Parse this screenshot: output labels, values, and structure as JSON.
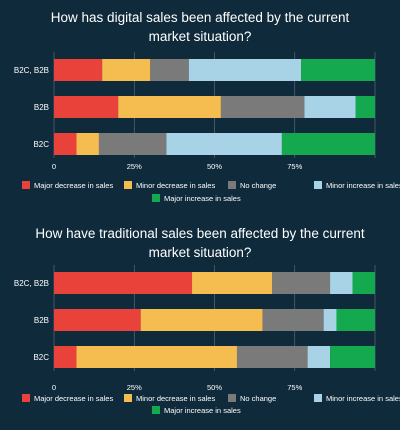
{
  "chart_data": [
    {
      "type": "bar",
      "orientation": "horizontal",
      "stacked": true,
      "title_lines": [
        "How has digital sales been affected by the current",
        "market situation?"
      ],
      "categories": [
        "B2C, B2B",
        "B2B",
        "B2C"
      ],
      "x_ticks": [
        "0",
        "25%",
        "50%",
        "75%",
        ""
      ],
      "xlim": [
        0,
        100
      ],
      "series": [
        {
          "name": "Major decrease in sales",
          "color": "#e8423b",
          "values": [
            15,
            20,
            7
          ]
        },
        {
          "name": "Minor decrease in sales",
          "color": "#f5bd4f",
          "values": [
            15,
            32,
            7
          ]
        },
        {
          "name": "No change",
          "color": "#7a7a7a",
          "values": [
            12,
            26,
            21
          ]
        },
        {
          "name": "Minor increase in sales",
          "color": "#a8d2e6",
          "values": [
            35,
            16,
            36
          ]
        },
        {
          "name": "Major increase in sales",
          "color": "#14a94f",
          "values": [
            23,
            6,
            29
          ]
        }
      ],
      "grid": true,
      "legend_position": "bottom"
    },
    {
      "type": "bar",
      "orientation": "horizontal",
      "stacked": true,
      "title_lines": [
        "How have traditional sales been affected by the current",
        "market situation?"
      ],
      "categories": [
        "B2C, B2B",
        "B2B",
        "B2C"
      ],
      "x_ticks": [
        "0",
        "25%",
        "50%",
        "75%",
        ""
      ],
      "xlim": [
        0,
        100
      ],
      "series": [
        {
          "name": "Major decrease in sales",
          "color": "#e8423b",
          "values": [
            43,
            27,
            7
          ]
        },
        {
          "name": "Minor decrease in sales",
          "color": "#f5bd4f",
          "values": [
            25,
            38,
            50
          ]
        },
        {
          "name": "No change",
          "color": "#7a7a7a",
          "values": [
            18,
            19,
            22
          ]
        },
        {
          "name": "Minor increase in sales",
          "color": "#a8d2e6",
          "values": [
            7,
            4,
            7
          ]
        },
        {
          "name": "Major increase in sales",
          "color": "#14a94f",
          "values": [
            7,
            12,
            14
          ]
        }
      ],
      "grid": true,
      "legend_position": "bottom"
    }
  ]
}
